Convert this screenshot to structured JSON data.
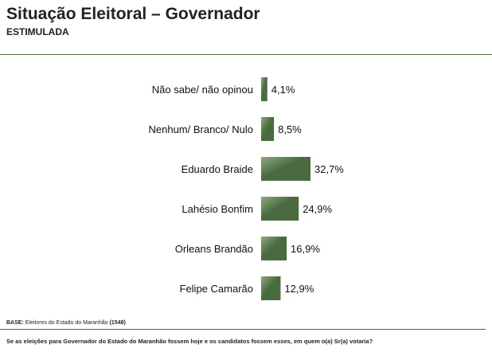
{
  "header": {
    "title": "Situação Eleitoral – Governador",
    "subtitle": "ESTIMULADA"
  },
  "chart_data": {
    "type": "bar",
    "orientation": "horizontal",
    "categories": [
      "Não sabe/ não opinou",
      "Nenhum/ Branco/ Nulo",
      "Eduardo Braide",
      "Lahésio Bonfim",
      "Orleans Brandão",
      "Felipe Camarão"
    ],
    "values": [
      4.1,
      8.5,
      32.7,
      24.9,
      16.9,
      12.9
    ],
    "value_labels": [
      "4,1%",
      "8,5%",
      "32,7%",
      "24,9%",
      "16,9%",
      "12,9%"
    ],
    "title": "Situação Eleitoral – Governador",
    "subtitle": "ESTIMULADA",
    "xlabel": "",
    "ylabel": "",
    "grid": false,
    "legend": "none",
    "bar_color": "#4a6b3f",
    "bar_highlight": "#8fa883"
  },
  "footer": {
    "base_label": "BASE:",
    "base_text": "Eleitores do Estado do Maranhão",
    "base_count": "(1548)",
    "question": "Se as eleições para Governador do Estado do Maranhão fossem hoje e os candidatos fossem esses, em quem o(a) Sr(a) votaria?"
  }
}
